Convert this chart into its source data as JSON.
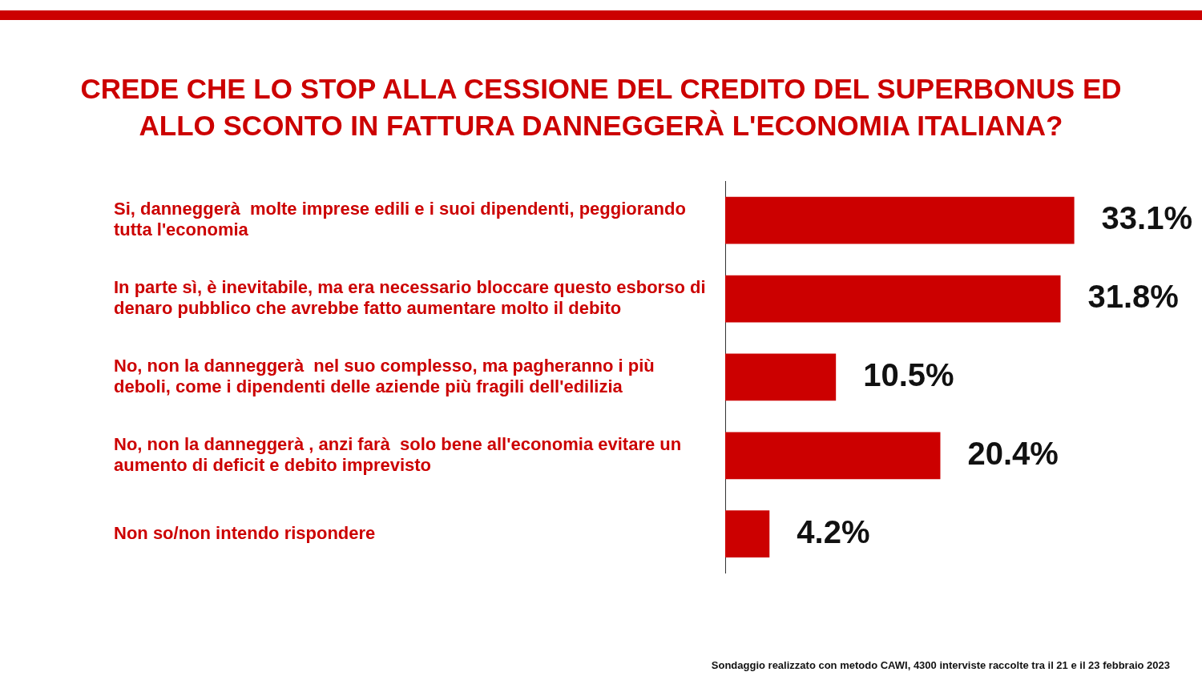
{
  "chart_data": {
    "type": "bar",
    "orientation": "horizontal",
    "title": "CREDE CHE LO STOP ALLA CESSIONE DEL CREDITO DEL SUPERBONUS ED ALLO SCONTO IN FATTURA DANNEGGERÀ L'ECONOMIA ITALIANA?",
    "categories": [
      "Si, danneggerà  molte imprese edili e i suoi dipendenti, peggiorando tutta l'economia",
      "In parte sì, è inevitabile, ma era necessario bloccare questo esborso di denaro pubblico che avrebbe fatto aumentare molto il debito",
      "No, non la danneggerà  nel suo complesso, ma pagheranno i più deboli, come i dipendenti delle aziende più fragili dell'edilizia",
      "No, non la danneggerà , anzi farà  solo bene all'economia evitare un aumento di deficit e debito imprevisto",
      "Non so/non intendo rispondere"
    ],
    "values": [
      33.1,
      31.8,
      10.5,
      20.4,
      4.2
    ],
    "value_labels": [
      "33.1%",
      "31.8%",
      "10.5%",
      "20.4%",
      "4.2%"
    ],
    "color": "#cc0000",
    "grid": false,
    "legend": false,
    "annotations": [
      "Sondaggio realizzato con metodo CAWI, 4300 interviste raccolte tra il 21 e il 23 febbraio 2023"
    ]
  }
}
